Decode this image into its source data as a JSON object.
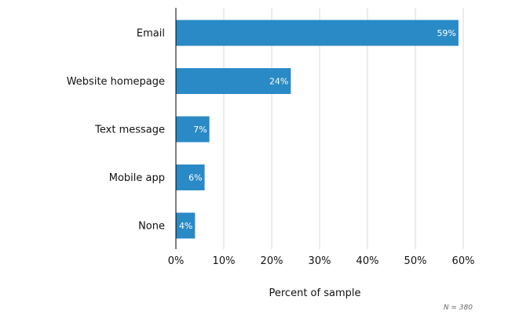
{
  "chart_data": {
    "type": "bar",
    "orientation": "horizontal",
    "categories": [
      "Email",
      "Website homepage",
      "Text message",
      "Mobile app",
      "None"
    ],
    "values": [
      59,
      24,
      7,
      6,
      4
    ],
    "data_labels": [
      "59%",
      "24%",
      "7%",
      "6%",
      "4%"
    ],
    "xlabel": "Percent of sample",
    "ylabel": "",
    "xlim": [
      0,
      60
    ],
    "x_ticks": [
      0,
      10,
      20,
      30,
      40,
      50,
      60
    ],
    "x_tick_labels": [
      "0%",
      "10%",
      "20%",
      "30%",
      "40%",
      "50%",
      "60%"
    ],
    "grid": true,
    "bar_color": "#2a8ac6",
    "gridline_color": "#d9d9d9",
    "note": "N = 380"
  }
}
